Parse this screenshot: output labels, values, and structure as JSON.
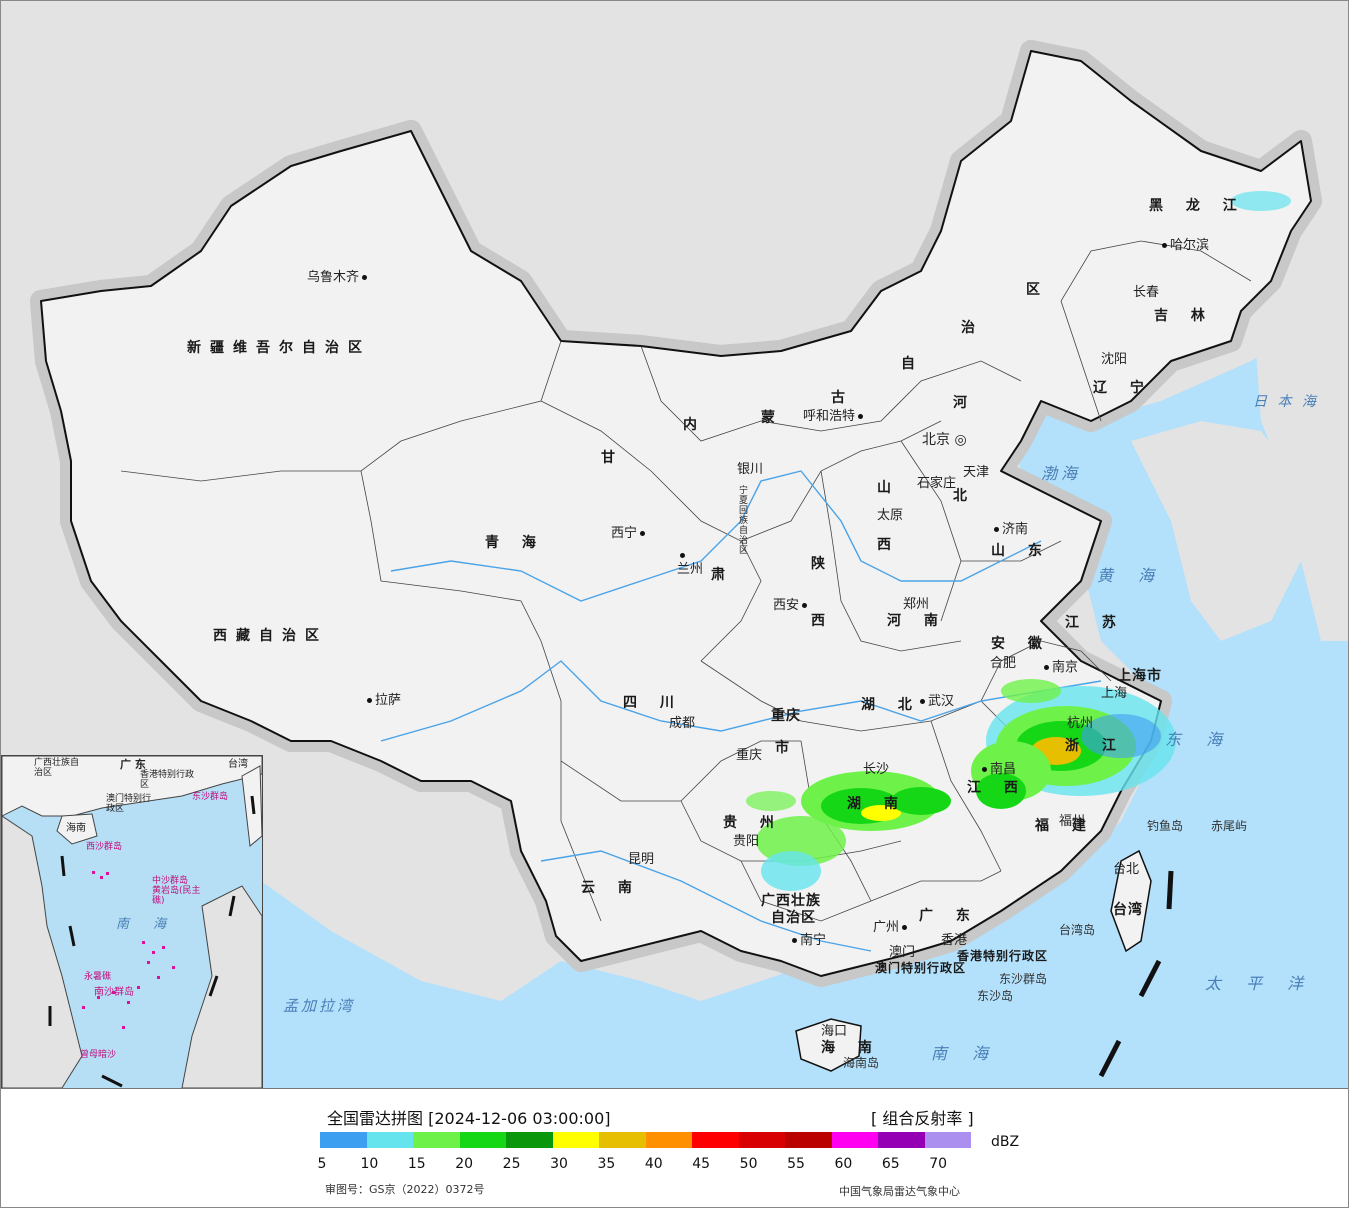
{
  "map": {
    "provinces": [
      {
        "id": "xinjiang",
        "text": "新疆维吾尔自治区"
      },
      {
        "id": "xizang",
        "text": "西藏自治区"
      },
      {
        "id": "qinghai",
        "text": "青  海"
      },
      {
        "id": "sichuan",
        "text": "四  川"
      },
      {
        "id": "yunnan",
        "text": "云  南"
      },
      {
        "id": "gansu",
        "text": "甘"
      },
      {
        "id": "neimenggu-nei",
        "text": "内"
      },
      {
        "id": "neimenggu-meng",
        "text": "蒙"
      },
      {
        "id": "neimenggu-gu",
        "text": "古"
      },
      {
        "id": "neimenggu-zi",
        "text": "自"
      },
      {
        "id": "neimenggu-zhi",
        "text": "治"
      },
      {
        "id": "neimenggu-qu",
        "text": "区"
      },
      {
        "id": "heilongjiang",
        "text": "黑 龙 江"
      },
      {
        "id": "jilin",
        "text": "吉 林"
      },
      {
        "id": "liaoning",
        "text": "辽 宁"
      },
      {
        "id": "hebei-he",
        "text": "河"
      },
      {
        "id": "hebei-bei",
        "text": "北"
      },
      {
        "id": "shanxi-shan",
        "text": "山"
      },
      {
        "id": "shanxi-xi",
        "text": "西"
      },
      {
        "id": "shandong",
        "text": "山 东"
      },
      {
        "id": "henan",
        "text": "河 南"
      },
      {
        "id": "shaanxi-shan",
        "text": "陕"
      },
      {
        "id": "shaanxi-xi",
        "text": "西"
      },
      {
        "id": "gansu-su",
        "text": "肃"
      },
      {
        "id": "hubei",
        "text": "湖  北"
      },
      {
        "id": "hunan",
        "text": "湖  南"
      },
      {
        "id": "jiangxi",
        "text": "江  西"
      },
      {
        "id": "anhui",
        "text": "安  徽"
      },
      {
        "id": "jiangsu",
        "text": "江  苏"
      },
      {
        "id": "zhejiang",
        "text": "浙 江"
      },
      {
        "id": "fujian",
        "text": "福  建"
      },
      {
        "id": "guangdong",
        "text": "广  东"
      },
      {
        "id": "guangxi",
        "text": "广西壮族"
      },
      {
        "id": "guangxi2",
        "text": "自治区"
      },
      {
        "id": "guizhou",
        "text": "贵  州"
      },
      {
        "id": "chongqing",
        "text": "重庆"
      },
      {
        "id": "chongqing2",
        "text": "市"
      },
      {
        "id": "ningxia",
        "text": "宁夏回族自治区"
      },
      {
        "id": "hainan",
        "text": "海  南"
      },
      {
        "id": "taiwan",
        "text": "台湾"
      },
      {
        "id": "shanghai",
        "text": "上海市"
      },
      {
        "id": "hk",
        "text": "香港特别行政区"
      },
      {
        "id": "macau",
        "text": "澳门特别行政区"
      }
    ],
    "cities": [
      {
        "id": "urumqi",
        "text": "乌鲁木齐"
      },
      {
        "id": "lhasa",
        "text": "拉萨"
      },
      {
        "id": "xining",
        "text": "西宁"
      },
      {
        "id": "lanzhou",
        "text": "兰州"
      },
      {
        "id": "yinchuan",
        "text": "银川"
      },
      {
        "id": "hohhot",
        "text": "呼和浩特"
      },
      {
        "id": "beijing",
        "text": "北京"
      },
      {
        "id": "tianjin",
        "text": "天津"
      },
      {
        "id": "shijiazhuang",
        "text": "石家庄"
      },
      {
        "id": "taiyuan",
        "text": "太原"
      },
      {
        "id": "jinan",
        "text": "济南"
      },
      {
        "id": "zhengzhou",
        "text": "郑州"
      },
      {
        "id": "xian",
        "text": "西安"
      },
      {
        "id": "chengdu",
        "text": "成都"
      },
      {
        "id": "chongqing-city",
        "text": "重庆"
      },
      {
        "id": "guiyang",
        "text": "贵阳"
      },
      {
        "id": "kunming",
        "text": "昆明"
      },
      {
        "id": "nanning",
        "text": "南宁"
      },
      {
        "id": "guangzhou",
        "text": "广州"
      },
      {
        "id": "aomen",
        "text": "澳门"
      },
      {
        "id": "xianggang",
        "text": "香港"
      },
      {
        "id": "haikou",
        "text": "海口"
      },
      {
        "id": "changsha",
        "text": "长沙"
      },
      {
        "id": "wuhan",
        "text": "武汉"
      },
      {
        "id": "nanchang",
        "text": "南昌"
      },
      {
        "id": "hefei",
        "text": "合肥"
      },
      {
        "id": "nanjing",
        "text": "南京"
      },
      {
        "id": "hangzhou",
        "text": "杭州"
      },
      {
        "id": "fuzhou",
        "text": "福州"
      },
      {
        "id": "taibei",
        "text": "台北"
      },
      {
        "id": "shenyang",
        "text": "沈阳"
      },
      {
        "id": "changchun",
        "text": "长春"
      },
      {
        "id": "haerbin",
        "text": "哈尔滨"
      },
      {
        "id": "shanghai-city",
        "text": "上海"
      }
    ],
    "seas": [
      {
        "id": "bohai",
        "text": "渤海"
      },
      {
        "id": "huanghai",
        "text": "黄 海"
      },
      {
        "id": "donghai",
        "text": "东 海"
      },
      {
        "id": "nanhai",
        "text": "南 海"
      },
      {
        "id": "taipingyang",
        "text": "太 平 洋"
      },
      {
        "id": "ribenhai",
        "text": "日 本 海"
      },
      {
        "id": "mengjialawan",
        "text": "孟加拉湾"
      }
    ],
    "islands": [
      {
        "id": "diaoyudao",
        "text": "钓鱼岛"
      },
      {
        "id": "chiweiyu",
        "text": "赤尾屿"
      },
      {
        "id": "taiwandao",
        "text": "台湾岛"
      },
      {
        "id": "dongshaqundao",
        "text": "东沙群岛"
      },
      {
        "id": "dongshadao",
        "text": "东沙岛"
      },
      {
        "id": "hainandao",
        "text": "海南岛"
      }
    ],
    "inset_labels": [
      {
        "id": "i-guangdong",
        "text": "广 东"
      },
      {
        "id": "i-guangxi",
        "text": "广西壮族自治区"
      },
      {
        "id": "i-hk",
        "text": "香港特别行政区"
      },
      {
        "id": "i-macau",
        "text": "澳门特别行政区"
      },
      {
        "id": "i-hainan",
        "text": "海南"
      },
      {
        "id": "i-taiwan",
        "text": "台湾"
      },
      {
        "id": "i-xisha",
        "text": "西沙群岛"
      },
      {
        "id": "i-zhongsha",
        "text": "中沙群岛"
      },
      {
        "id": "i-huangyan",
        "text": "黄岩岛(民主礁)"
      },
      {
        "id": "i-dongsha",
        "text": "东沙群岛"
      },
      {
        "id": "i-nanhai",
        "text": "南 海"
      },
      {
        "id": "i-nansha",
        "text": "南沙群岛"
      },
      {
        "id": "i-yongshu",
        "text": "永暑礁"
      },
      {
        "id": "i-zengmu",
        "text": "曾母暗沙"
      }
    ]
  },
  "legend": {
    "title": "全国雷达拼图 [2024-12-06 03:00:00]",
    "product": "[ 组合反射率 ]",
    "unit": "dBZ",
    "ticks": [
      "5",
      "10",
      "15",
      "20",
      "25",
      "30",
      "35",
      "40",
      "45",
      "50",
      "55",
      "60",
      "65",
      "70"
    ],
    "colors": [
      "#3d9ff0",
      "#65e4ee",
      "#6ef24a",
      "#16d716",
      "#0b970b",
      "#ffff00",
      "#e6c000",
      "#ff9000",
      "#ff0000",
      "#d80000",
      "#bb0000",
      "#ff00f0",
      "#9600b4",
      "#ac90f0"
    ],
    "review_no": "审图号：GS京（2022）0372号",
    "agency": "中国气象局雷达气象中心"
  }
}
